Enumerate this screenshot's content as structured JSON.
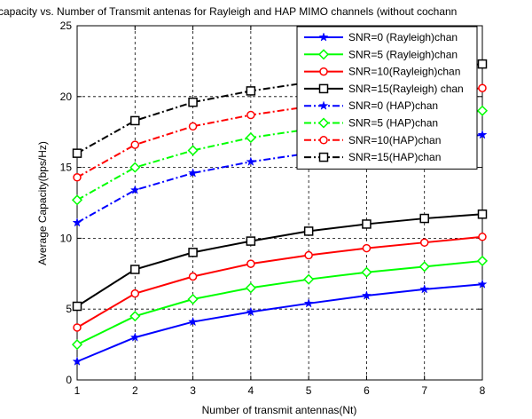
{
  "chart_data": {
    "type": "line",
    "title": "capacity vs. Number of Transmit antenas for Rayleigh and HAP MIMO channels (without cochann",
    "xlabel": "Number of transmit antennas(Nt)",
    "ylabel": "Average Capacity(bps/Hz)",
    "xlim": [
      1,
      8
    ],
    "ylim": [
      0,
      25
    ],
    "xticks": [
      "1",
      "2",
      "3",
      "4",
      "5",
      "6",
      "7",
      "8"
    ],
    "yticks": [
      "0",
      "5",
      "10",
      "15",
      "20",
      "25"
    ],
    "grid": true,
    "legend_position": "top-right",
    "x": [
      1,
      2,
      3,
      4,
      5,
      6,
      7,
      8
    ],
    "series": [
      {
        "name": "SNR=0  (Rayleigh)chan",
        "color": "#0000ff",
        "dash": "solid",
        "marker": "star",
        "values": [
          1.3,
          3.0,
          4.1,
          4.8,
          5.4,
          5.95,
          6.4,
          6.75
        ]
      },
      {
        "name": "SNR=5  (Rayleigh)chan",
        "color": "#00ff00",
        "dash": "solid",
        "marker": "diamond",
        "values": [
          2.5,
          4.5,
          5.7,
          6.5,
          7.1,
          7.6,
          8.0,
          8.4
        ]
      },
      {
        "name": "SNR=10(Rayleigh)chan",
        "color": "#ff0000",
        "dash": "solid",
        "marker": "circle",
        "values": [
          3.7,
          6.1,
          7.3,
          8.2,
          8.8,
          9.3,
          9.7,
          10.1
        ]
      },
      {
        "name": "SNR=15(Rayleigh) chan",
        "color": "#000000",
        "dash": "solid",
        "marker": "square",
        "values": [
          5.2,
          7.8,
          9.0,
          9.8,
          10.5,
          11.0,
          11.4,
          11.7
        ]
      },
      {
        "name": "SNR=0  (HAP)chan",
        "color": "#0000ff",
        "dash": "dashdot",
        "marker": "star",
        "values": [
          11.1,
          13.4,
          14.6,
          15.4,
          16.0,
          16.5,
          16.9,
          17.3
        ]
      },
      {
        "name": "SNR=5  (HAP)chan",
        "color": "#00ff00",
        "dash": "dashdot",
        "marker": "diamond",
        "values": [
          12.7,
          15.0,
          16.2,
          17.1,
          17.7,
          18.2,
          18.6,
          19.0
        ]
      },
      {
        "name": "SNR=10(HAP)chan",
        "color": "#ff0000",
        "dash": "dashdot",
        "marker": "circle",
        "values": [
          14.3,
          16.6,
          17.9,
          18.7,
          19.3,
          19.8,
          20.2,
          20.6
        ]
      },
      {
        "name": "SNR=15(HAP)chan",
        "color": "#000000",
        "dash": "dashdot",
        "marker": "square",
        "values": [
          16.0,
          18.3,
          19.6,
          20.4,
          21.0,
          21.5,
          21.9,
          22.3
        ]
      }
    ]
  }
}
